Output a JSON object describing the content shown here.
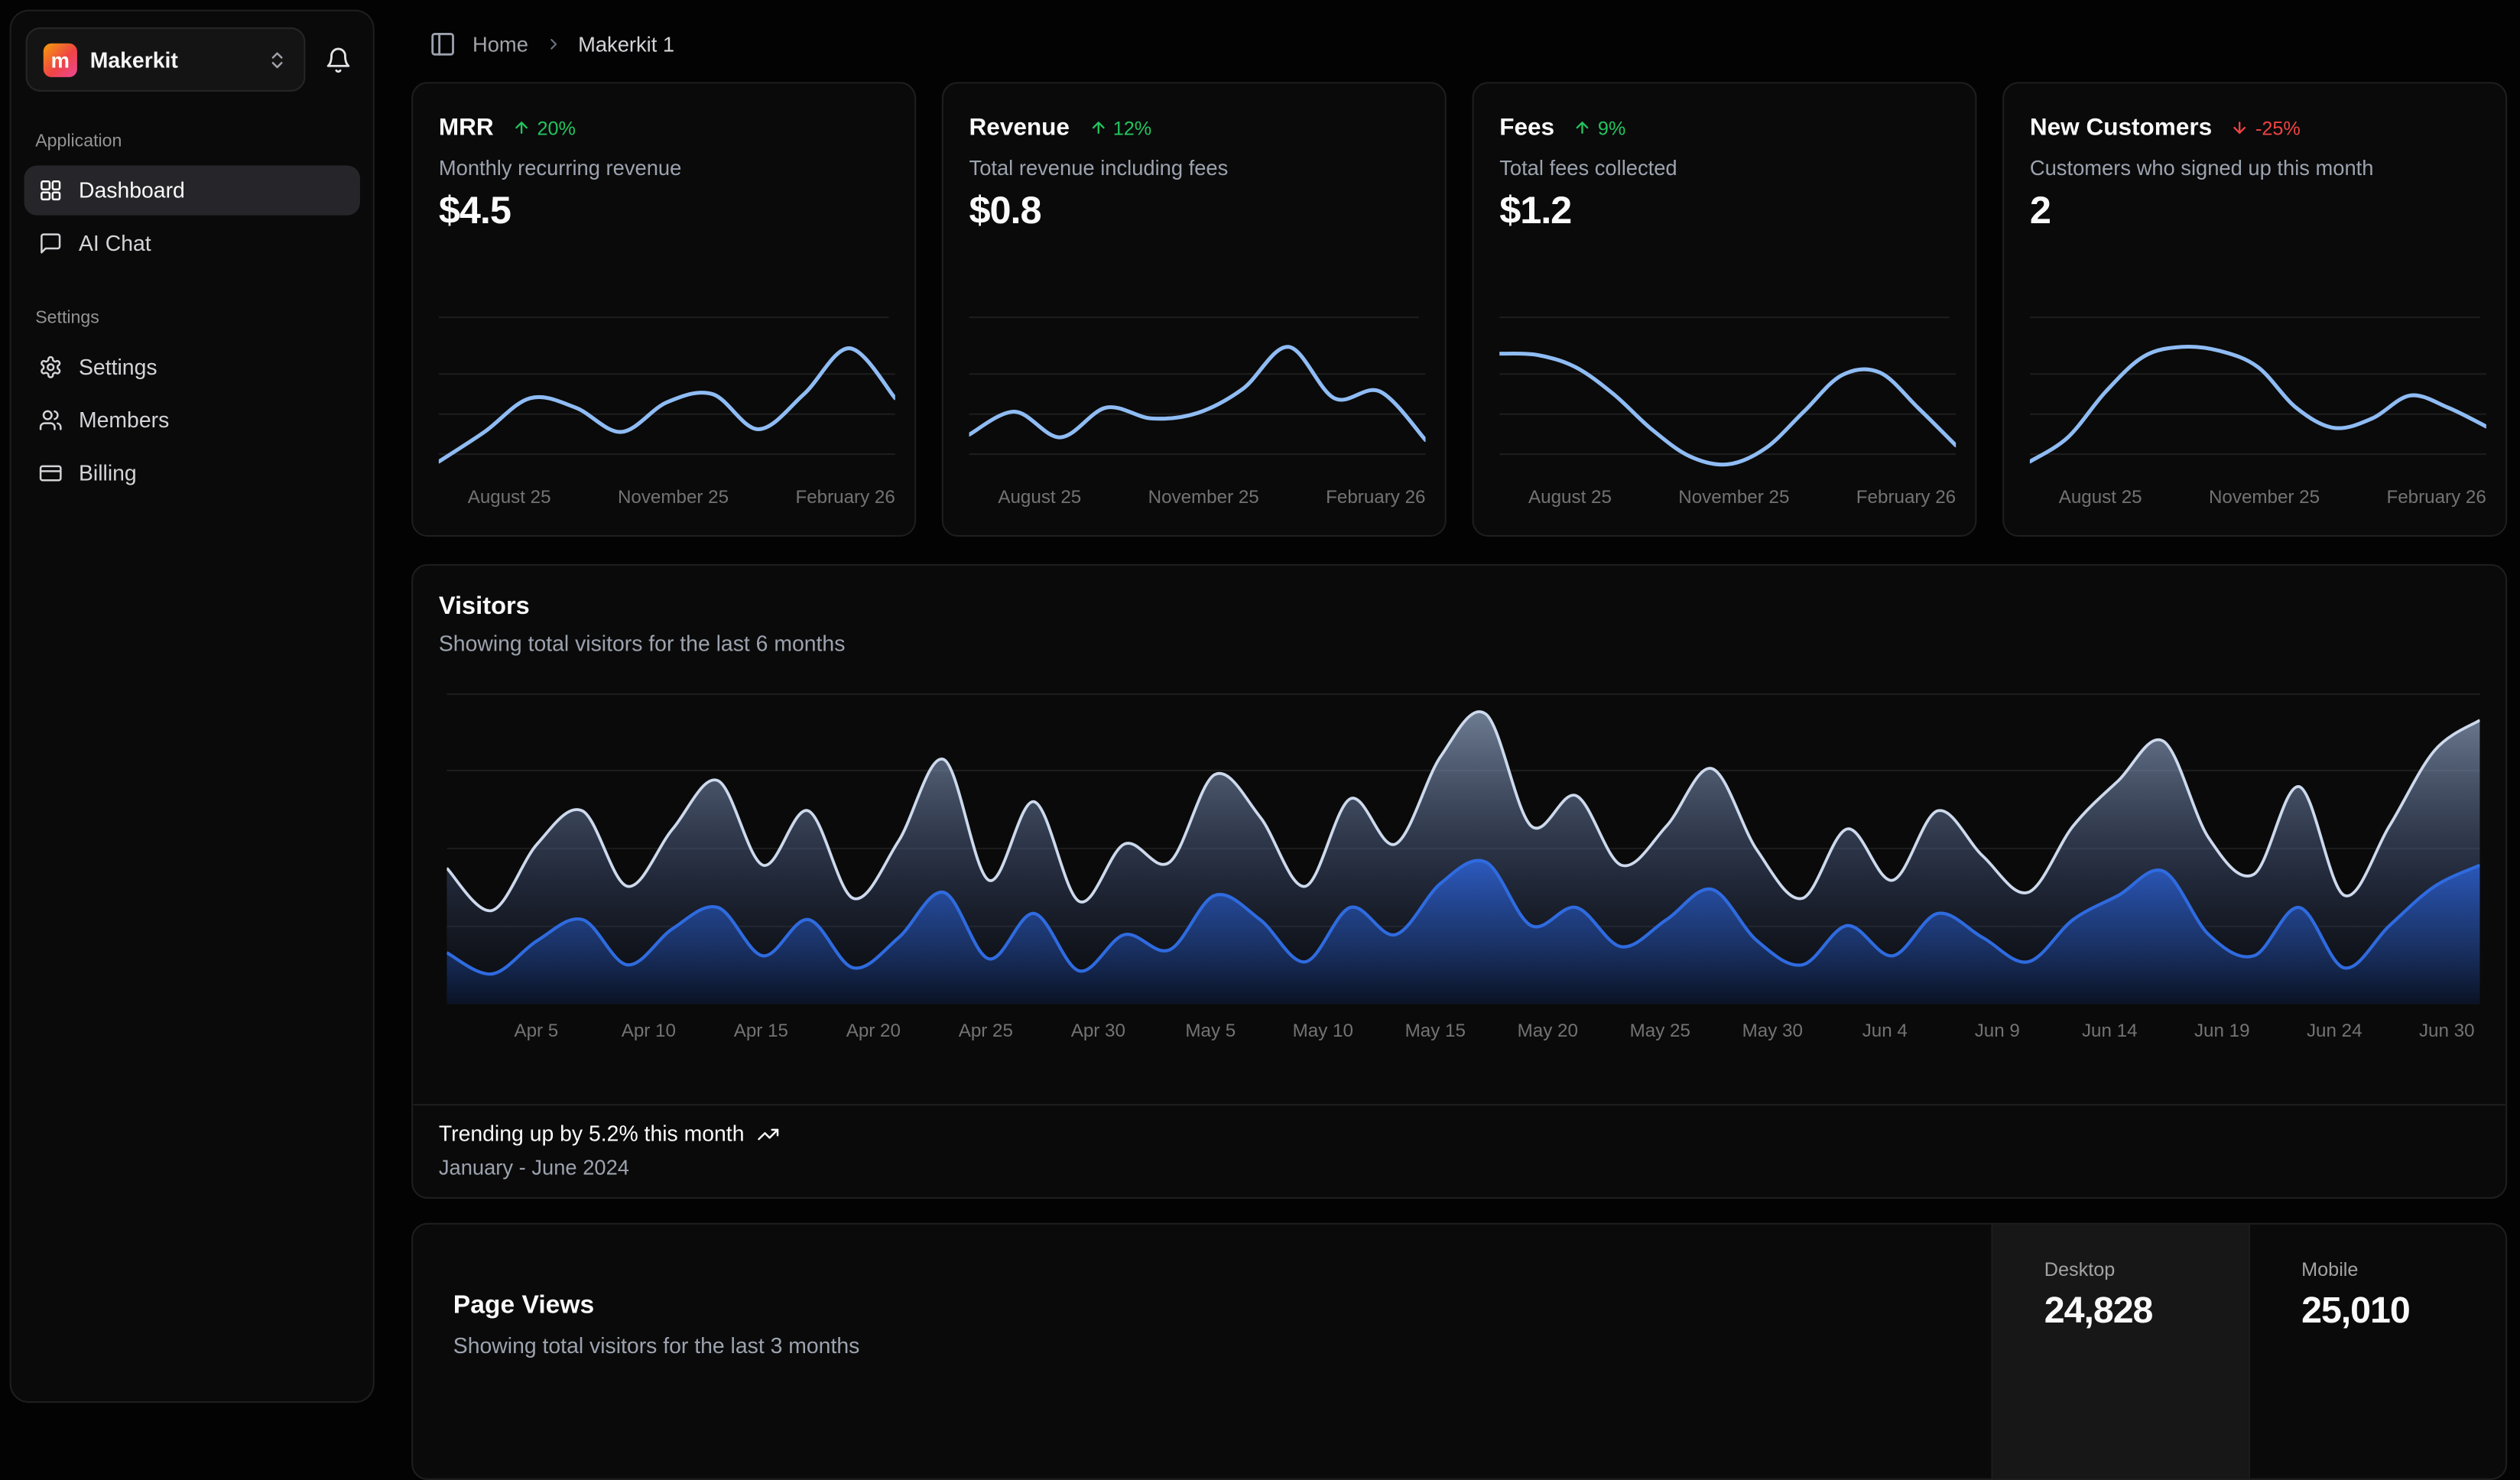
{
  "colors": {
    "positive": "#22c55e",
    "negative": "#ef4444",
    "grid": "#1d1d1d",
    "spark_line": "#8fbcf4",
    "visitors_total_line": "#cdd9ec",
    "visitors_desktop_line": "#2f6be0",
    "logo_gradient": [
      "#f59e0b",
      "#ec4899"
    ]
  },
  "sidebar": {
    "org": {
      "name": "Makerkit",
      "logo_letter": "m"
    },
    "icons": [
      "chevrons-up-down-icon",
      "bell-icon"
    ],
    "sections": [
      {
        "label": "Application",
        "items": [
          {
            "label": "Dashboard",
            "icon": "layout-dashboard-icon",
            "active": true
          },
          {
            "label": "AI Chat",
            "icon": "message-square-icon",
            "active": false
          }
        ]
      },
      {
        "label": "Settings",
        "items": [
          {
            "label": "Settings",
            "icon": "gear-icon",
            "active": false
          },
          {
            "label": "Members",
            "icon": "users-icon",
            "active": false
          },
          {
            "label": "Billing",
            "icon": "credit-card-icon",
            "active": false
          }
        ]
      }
    ]
  },
  "breadcrumb": {
    "home": "Home",
    "current": "Makerkit 1"
  },
  "stat_cards": [
    {
      "title": "MRR",
      "badge": "20%",
      "direction": "up",
      "subtitle": "Monthly recurring revenue",
      "value": "$4.5"
    },
    {
      "title": "Revenue",
      "badge": "12%",
      "direction": "up",
      "subtitle": "Total revenue including fees",
      "value": "$0.8"
    },
    {
      "title": "Fees",
      "badge": "9%",
      "direction": "up",
      "subtitle": "Total fees collected",
      "value": "$1.2"
    },
    {
      "title": "New Customers",
      "badge": "-25%",
      "direction": "down",
      "subtitle": "Customers who signed up this month",
      "value": "2"
    }
  ],
  "spark_x_labels": [
    "August 25",
    "November 25",
    "February 26"
  ],
  "visitors": {
    "title": "Visitors",
    "subtitle": "Showing total visitors for the last 6 months",
    "footer_bold": "Trending up by 5.2% this month",
    "footer_muted": "January - June 2024"
  },
  "page_views": {
    "title": "Page Views",
    "subtitle": "Showing total visitors for the last 3 months",
    "stats": [
      {
        "label": "Desktop",
        "value": "24,828",
        "active": true
      },
      {
        "label": "Mobile",
        "value": "25,010",
        "active": false
      }
    ]
  },
  "chart_data": [
    {
      "id": "spark-mrr",
      "type": "line",
      "title": "MRR trend",
      "x_labels": [
        "August 25",
        "November 25",
        "February 26"
      ],
      "values": [
        8,
        30,
        55,
        48,
        30,
        52,
        58,
        32,
        58,
        92,
        55
      ],
      "ylim": [
        0,
        100
      ],
      "y_unit": "estimated % of plot height",
      "grid": true,
      "legend": "none",
      "line_color": "#8fbcf4"
    },
    {
      "id": "spark-revenue",
      "type": "line",
      "title": "Revenue trend",
      "x_labels": [
        "August 25",
        "November 25",
        "February 26"
      ],
      "values": [
        28,
        45,
        26,
        48,
        40,
        44,
        62,
        93,
        55,
        60,
        24
      ],
      "ylim": [
        0,
        100
      ],
      "y_unit": "estimated % of plot height",
      "grid": true,
      "legend": "none",
      "line_color": "#8fbcf4"
    },
    {
      "id": "spark-fees",
      "type": "line",
      "title": "Fees trend",
      "x_labels": [
        "August 25",
        "November 25",
        "February 26"
      ],
      "values": [
        88,
        87,
        78,
        58,
        32,
        12,
        6,
        18,
        45,
        72,
        74,
        48,
        20
      ],
      "ylim": [
        0,
        100
      ],
      "y_unit": "estimated % of plot height",
      "grid": true,
      "legend": "none",
      "line_color": "#8fbcf4"
    },
    {
      "id": "spark-customers",
      "type": "line",
      "title": "New customers trend",
      "x_labels": [
        "August 25",
        "November 25",
        "February 26"
      ],
      "values": [
        8,
        26,
        60,
        86,
        93,
        90,
        78,
        48,
        33,
        40,
        57,
        48,
        34
      ],
      "ylim": [
        0,
        100
      ],
      "y_unit": "estimated % of plot height",
      "grid": true,
      "legend": "none",
      "line_color": "#8fbcf4"
    },
    {
      "id": "visitors-area",
      "type": "area",
      "title": "Visitors",
      "subtitle": "Showing total visitors for the last 6 months",
      "x_tick_labels": [
        "Apr 5",
        "Apr 10",
        "Apr 15",
        "Apr 20",
        "Apr 25",
        "Apr 30",
        "May 5",
        "May 10",
        "May 15",
        "May 20",
        "May 25",
        "May 30",
        "Jun 4",
        "Jun 9",
        "Jun 14",
        "Jun 19",
        "Jun 24",
        "Jun 30"
      ],
      "x_range": "April 1 - June 30",
      "ylim": [
        0,
        100
      ],
      "y_unit": "estimated % of plot height",
      "grid": true,
      "legend": "none",
      "series": [
        {
          "name": "total",
          "line_color": "#cdd9ec",
          "values": [
            44,
            30,
            52,
            63,
            38,
            57,
            73,
            45,
            63,
            34,
            53,
            80,
            40,
            66,
            33,
            52,
            46,
            75,
            61,
            38,
            67,
            52,
            81,
            95,
            58,
            68,
            45,
            58,
            77,
            50,
            34,
            57,
            40,
            63,
            48,
            36,
            58,
            73,
            86,
            54,
            42,
            71,
            35,
            58,
            83,
            93
          ]
        },
        {
          "name": "desktop",
          "line_color": "#2f6be0",
          "values": [
            16,
            9,
            20,
            27,
            12,
            24,
            31,
            15,
            27,
            11,
            21,
            36,
            14,
            29,
            10,
            22,
            17,
            35,
            27,
            13,
            31,
            22,
            39,
            46,
            25,
            31,
            18,
            27,
            37,
            20,
            12,
            25,
            15,
            29,
            21,
            13,
            27,
            35,
            43,
            22,
            15,
            31,
            11,
            25,
            38,
            45
          ]
        }
      ]
    }
  ]
}
